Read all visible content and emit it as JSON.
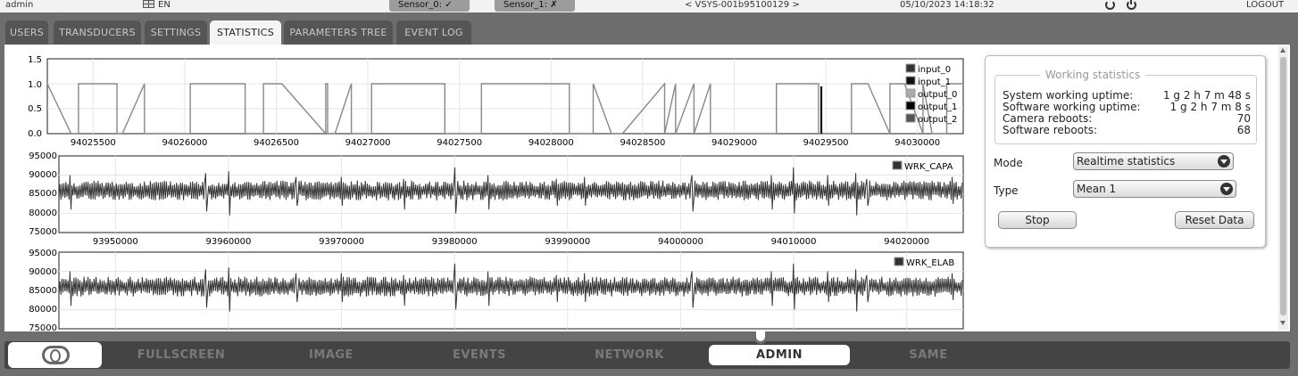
{
  "topbar": {
    "user": "admin",
    "language": "EN",
    "sensor0": "Sensor_0: ✓",
    "sensor1": "Sensor_1: ✗",
    "device": "< VSYS-001b95100129 >",
    "datetime": "05/10/2023 14:18:32",
    "logout": "LOGOUT"
  },
  "tabs": [
    {
      "label": "USERS"
    },
    {
      "label": "TRANSDUCERS"
    },
    {
      "label": "SETTINGS"
    },
    {
      "label": "STATISTICS"
    },
    {
      "label": "PARAMETERS TREE"
    },
    {
      "label": "EVENT LOG"
    }
  ],
  "active_tab": "STATISTICS",
  "chart_data": [
    {
      "type": "line",
      "x_ticks": [
        "94025500",
        "94026000",
        "94026500",
        "94027000",
        "94027500",
        "94028000",
        "94028500",
        "94029000",
        "94029500",
        "94030000"
      ],
      "y_ticks": [
        "0.0",
        "0.5",
        "1.0",
        "1.5"
      ],
      "ylim": [
        0,
        1.5
      ],
      "xlim": [
        94025250,
        94030250
      ],
      "legend": "top-right",
      "series": [
        {
          "name": "input_0",
          "color": "#333333"
        },
        {
          "name": "input_1",
          "color": "#111111"
        },
        {
          "name": "output_0",
          "color": "#aaaaaa"
        },
        {
          "name": "output_1",
          "color": "#000000"
        },
        {
          "name": "output_2",
          "color": "#555555"
        }
      ],
      "segments": [
        [
          94025250,
          1
        ],
        [
          94025380,
          0
        ],
        [
          94025420,
          0
        ],
        [
          94025420,
          1
        ],
        [
          94025630,
          1
        ],
        [
          94025630,
          0
        ],
        [
          94025660,
          0
        ],
        [
          94025780,
          1
        ],
        [
          94025780,
          0
        ],
        [
          94026030,
          0
        ],
        [
          94026030,
          1
        ],
        [
          94026330,
          1
        ],
        [
          94026330,
          0
        ],
        [
          94026430,
          0
        ],
        [
          94026430,
          1
        ],
        [
          94026530,
          1
        ],
        [
          94026770,
          0
        ],
        [
          94026770,
          1
        ],
        [
          94026780,
          1
        ],
        [
          94026780,
          0
        ],
        [
          94026820,
          0
        ],
        [
          94026910,
          1
        ],
        [
          94026910,
          0
        ],
        [
          94027020,
          0
        ],
        [
          94027020,
          1
        ],
        [
          94027420,
          1
        ],
        [
          94027420,
          0
        ],
        [
          94027620,
          0
        ],
        [
          94027620,
          1
        ],
        [
          94028100,
          1
        ],
        [
          94028100,
          0
        ],
        [
          94028230,
          0
        ],
        [
          94028230,
          1
        ],
        [
          94028330,
          0
        ],
        [
          94028390,
          0
        ],
        [
          94028620,
          1
        ],
        [
          94028620,
          0
        ],
        [
          94028680,
          1
        ],
        [
          94028680,
          0
        ],
        [
          94028780,
          1
        ],
        [
          94028780,
          0
        ],
        [
          94028870,
          1
        ],
        [
          94028870,
          0
        ],
        [
          94029230,
          0
        ],
        [
          94029230,
          1
        ],
        [
          94029460,
          1
        ],
        [
          94029460,
          0
        ],
        [
          94029640,
          0
        ],
        [
          94029640,
          1
        ],
        [
          94029730,
          1
        ],
        [
          94029850,
          0
        ],
        [
          94029850,
          1
        ],
        [
          94029930,
          1
        ],
        [
          94030030,
          0
        ],
        [
          94030030,
          1
        ],
        [
          94030080,
          0
        ],
        [
          94030160,
          0
        ],
        [
          94030160,
          1
        ],
        [
          94030250,
          1
        ]
      ]
    },
    {
      "type": "line",
      "series": [
        {
          "name": "WRK_CAPA"
        }
      ],
      "y_ticks": [
        "75000",
        "80000",
        "85000",
        "90000",
        "95000"
      ],
      "ylim": [
        75000,
        95000
      ],
      "x_ticks": [
        "93950000",
        "93960000",
        "93970000",
        "93980000",
        "93990000",
        "94000000",
        "94010000",
        "94020000"
      ],
      "xlim": [
        93945000,
        94025000
      ],
      "baseline": 86000,
      "spikes": [
        [
          93946000,
          90000,
          81000
        ],
        [
          93958000,
          90500,
          80500
        ],
        [
          93960000,
          91000,
          79500
        ],
        [
          93966000,
          89500,
          82000
        ],
        [
          93970000,
          89500,
          82000
        ],
        [
          93975500,
          89000,
          81000
        ],
        [
          93980000,
          92000,
          80000
        ],
        [
          93983000,
          90000,
          81000
        ],
        [
          93989000,
          89000,
          82000
        ],
        [
          93991500,
          89500,
          82000
        ],
        [
          94001000,
          90000,
          80500
        ],
        [
          94008000,
          90000,
          81000
        ],
        [
          94010000,
          92000,
          80000
        ],
        [
          94013000,
          90000,
          82000
        ],
        [
          94015500,
          90500,
          79500
        ],
        [
          94016500,
          89000,
          82000
        ],
        [
          94024000,
          89500,
          82500
        ]
      ]
    },
    {
      "type": "line",
      "series": [
        {
          "name": "WRK_ELAB"
        }
      ],
      "y_ticks": [
        "75000",
        "80000",
        "85000",
        "90000",
        "95000"
      ],
      "ylim": [
        75000,
        95000
      ],
      "xlim": [
        93945000,
        94025000
      ],
      "baseline": 86000,
      "spikes": [
        [
          93946000,
          90000,
          81000
        ],
        [
          93958000,
          90500,
          80500
        ],
        [
          93960000,
          91000,
          79500
        ],
        [
          93966000,
          89500,
          82000
        ],
        [
          93970000,
          89500,
          82000
        ],
        [
          93975500,
          89000,
          81000
        ],
        [
          93980000,
          92000,
          80000
        ],
        [
          93983000,
          90000,
          81000
        ],
        [
          93989000,
          89000,
          82000
        ],
        [
          93991500,
          89500,
          82000
        ],
        [
          94001000,
          90000,
          80500
        ],
        [
          94008000,
          90000,
          81000
        ],
        [
          94010000,
          92000,
          80000
        ],
        [
          94013000,
          90000,
          82000
        ],
        [
          94015500,
          90500,
          79500
        ],
        [
          94016500,
          89000,
          82000
        ],
        [
          94024000,
          89500,
          82500
        ]
      ]
    }
  ],
  "stats": {
    "title": "Working statistics",
    "rows": [
      {
        "label": "System working uptime:",
        "value": "1 g 2 h 7 m 48 s"
      },
      {
        "label": "Software working uptime:",
        "value": "1 g 2 h 7 m 8 s"
      },
      {
        "label": "Camera reboots:",
        "value": "70"
      },
      {
        "label": "Software reboots:",
        "value": "68"
      }
    ],
    "mode_label": "Mode",
    "mode_value": "Realtime statistics",
    "type_label": "Type",
    "type_value": "Mean 1",
    "stop_label": "Stop",
    "reset_label": "Reset Data"
  },
  "bottomnav": [
    {
      "label": "FULLSCREEN"
    },
    {
      "label": "IMAGE"
    },
    {
      "label": "EVENTS"
    },
    {
      "label": "NETWORK"
    },
    {
      "label": "ADMIN"
    },
    {
      "label": "SAME"
    }
  ],
  "active_nav": "ADMIN"
}
